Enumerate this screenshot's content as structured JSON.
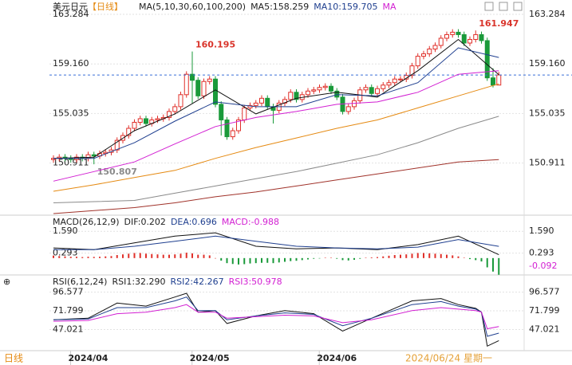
{
  "chart_data": [
    {
      "type": "candlestick",
      "title": "美元日元",
      "subtitle": "【日线】",
      "legend": [
        {
          "text": "MA(5,10,30,60,100,200)",
          "color": "#222222"
        },
        {
          "text": "MA5:158.259",
          "color": "#222222"
        },
        {
          "text": "MA10:159.705",
          "color": "#1f3f8f"
        },
        {
          "text": "MA",
          "color": "#d21fd2"
        }
      ],
      "up_color": "#e0302a",
      "down_color": "#1a9a3a",
      "candles": {
        "open": [
          151.2,
          151.3,
          151.4,
          151.3,
          151.2,
          151.4,
          151.3,
          151.6,
          151.5,
          151.7,
          151.8,
          152.0,
          152.8,
          153.2,
          153.8,
          154.3,
          154.6,
          154.2,
          154.5,
          154.6,
          154.7,
          155.2,
          155.6,
          156.6,
          158.3,
          157.8,
          156.5,
          157.7,
          157.9,
          155.8,
          154.5,
          153.1,
          153.6,
          154.5,
          155.5,
          155.7,
          155.9,
          156.3,
          155.6,
          155.3,
          155.9,
          156.2,
          156.8,
          156.2,
          156.6,
          156.9,
          157.0,
          157.2,
          157.3,
          156.9,
          156.4,
          155.2,
          155.6,
          156.1,
          157.0,
          157.2,
          156.7,
          157.1,
          157.4,
          157.6,
          157.9,
          157.9,
          158.2,
          159.0,
          159.8,
          160.0,
          160.4,
          160.7,
          161.3,
          161.6,
          161.8,
          161.6,
          160.9,
          161.2,
          161.6,
          161.1,
          158.0,
          157.4
        ],
        "high": [
          151.55,
          151.65,
          151.65,
          151.55,
          151.65,
          151.65,
          151.85,
          151.85,
          151.95,
          152.05,
          152.25,
          153.05,
          153.45,
          154.05,
          154.55,
          154.85,
          154.85,
          154.75,
          154.85,
          154.95,
          155.45,
          155.85,
          156.85,
          158.55,
          160.195,
          158.05,
          157.95,
          158.15,
          158.15,
          156.05,
          154.75,
          153.85,
          154.75,
          155.75,
          155.95,
          156.15,
          156.55,
          156.55,
          155.85,
          156.15,
          156.45,
          157.05,
          157.05,
          156.85,
          157.15,
          157.25,
          157.45,
          157.55,
          157.55,
          157.15,
          156.65,
          155.85,
          156.35,
          157.25,
          157.45,
          157.45,
          157.35,
          157.65,
          157.85,
          158.15,
          158.15,
          158.45,
          159.25,
          160.05,
          160.25,
          160.65,
          160.95,
          161.55,
          161.85,
          162.05,
          162.05,
          161.85,
          161.45,
          161.947,
          161.85,
          161.35,
          158.8,
          158.5
        ],
        "low": [
          150.95,
          151.05,
          151.05,
          150.95,
          150.95,
          151.05,
          151.05,
          150.807,
          151.25,
          151.45,
          151.55,
          151.75,
          152.55,
          152.95,
          153.55,
          154.05,
          153.95,
          153.95,
          154.25,
          154.35,
          154.45,
          154.95,
          155.35,
          156.35,
          155.9,
          156.25,
          156.25,
          157.45,
          155.55,
          153.2,
          152.85,
          152.85,
          153.35,
          154.25,
          155.25,
          155.45,
          155.65,
          155.35,
          154.2,
          155.05,
          155.65,
          155.95,
          155.95,
          155.95,
          156.35,
          156.65,
          156.75,
          156.95,
          156.65,
          156.15,
          154.95,
          154.95,
          155.35,
          155.85,
          156.75,
          156.45,
          156.45,
          156.85,
          157.15,
          157.35,
          157.65,
          157.65,
          157.95,
          158.75,
          159.55,
          159.75,
          160.15,
          160.45,
          161.05,
          161.35,
          161.35,
          160.65,
          160.65,
          160.95,
          160.85,
          157.75,
          157.2,
          157.9
        ],
        "close": [
          151.3,
          151.4,
          151.3,
          151.2,
          151.4,
          151.3,
          151.6,
          151.5,
          151.7,
          151.8,
          152.0,
          152.8,
          153.2,
          153.8,
          154.3,
          154.6,
          154.2,
          154.5,
          154.6,
          154.7,
          155.2,
          155.6,
          156.6,
          158.3,
          157.8,
          156.5,
          157.7,
          157.9,
          155.8,
          154.5,
          153.1,
          153.6,
          154.5,
          155.5,
          155.7,
          155.9,
          156.3,
          155.6,
          155.3,
          155.9,
          156.2,
          156.8,
          156.2,
          156.6,
          156.9,
          157.0,
          157.2,
          157.3,
          156.9,
          156.4,
          155.2,
          155.6,
          156.1,
          157.0,
          157.2,
          156.7,
          157.1,
          157.4,
          157.6,
          157.9,
          157.9,
          158.2,
          159.0,
          159.8,
          160.0,
          160.4,
          160.7,
          161.3,
          161.6,
          161.8,
          161.6,
          160.9,
          161.2,
          161.6,
          161.1,
          158.0,
          157.4,
          158.24
        ]
      },
      "series": [
        {
          "name": "MA5",
          "color": "#111111",
          "x": [
            0,
            7,
            14,
            21,
            28,
            35,
            42,
            49,
            56,
            63,
            70,
            77
          ],
          "values": [
            151.3,
            151.4,
            153.6,
            155.0,
            157.0,
            155.0,
            156.3,
            156.8,
            156.4,
            158.6,
            161.2,
            158.26
          ]
        },
        {
          "name": "MA10",
          "color": "#1f3f8f",
          "x": [
            0,
            7,
            14,
            21,
            28,
            35,
            42,
            49,
            56,
            63,
            70,
            77
          ],
          "values": [
            151.3,
            151.3,
            152.6,
            154.4,
            156.0,
            155.6,
            155.6,
            156.6,
            156.5,
            157.6,
            160.5,
            159.7
          ]
        },
        {
          "name": "MA30",
          "color": "#d21fd2",
          "x": [
            0,
            7,
            14,
            21,
            28,
            35,
            42,
            49,
            56,
            63,
            70,
            77
          ],
          "values": [
            149.4,
            150.2,
            151.0,
            152.5,
            153.95,
            154.7,
            155.2,
            155.8,
            156.0,
            156.8,
            158.3,
            158.6
          ]
        },
        {
          "name": "MA60",
          "color": "#e58a12",
          "x": [
            0,
            7,
            14,
            21,
            28,
            35,
            42,
            49,
            56,
            63,
            70,
            77
          ],
          "values": [
            148.56,
            149.1,
            149.7,
            150.3,
            151.3,
            152.2,
            153.0,
            153.8,
            154.5,
            155.5,
            156.5,
            157.5
          ]
        },
        {
          "name": "MA100",
          "color": "#8a8a8a",
          "x": [
            0,
            7,
            14,
            21,
            28,
            35,
            42,
            49,
            56,
            63,
            70,
            77
          ],
          "values": [
            147.6,
            147.7,
            147.8,
            148.4,
            149.0,
            149.6,
            150.2,
            150.9,
            151.6,
            152.6,
            153.8,
            154.8
          ]
        },
        {
          "name": "MA200",
          "color": "#a0322a",
          "x": [
            0,
            7,
            14,
            21,
            28,
            35,
            42,
            49,
            56,
            63,
            70,
            77
          ],
          "values": [
            146.7,
            146.95,
            147.2,
            147.6,
            148.1,
            148.5,
            149.0,
            149.5,
            150.0,
            150.5,
            151.0,
            151.2
          ]
        }
      ],
      "annotations": [
        160.195,
        161.947,
        150.807
      ],
      "annotation_colors": [
        "#d9342b",
        "#d9342b",
        "#8a8a8a"
      ],
      "last_price_color": "#3a6fd8",
      "ylim": [
        146.57,
        164.15
      ],
      "yticks": [
        163.284,
        {
          "value": 159.16,
          "label": "159.160"
        },
        155.035,
        150.911
      ]
    },
    {
      "type": "macd",
      "legend": [
        {
          "text": "MACD(26,12,9)",
          "color": "#222222"
        },
        {
          "text": "DIF:0.202",
          "color": "#222222"
        },
        {
          "text": "DEA:0.696",
          "color": "#1f3f8f"
        },
        {
          "text": "MACD:-0.988",
          "color": "#d21fd2"
        }
      ],
      "up_color": "#e0302a",
      "down_color": "#1a9a3a",
      "histogram": [
        0.15,
        0.12,
        0.1,
        0.08,
        0.08,
        0.06,
        0.08,
        0.07,
        0.08,
        0.1,
        0.12,
        0.18,
        0.22,
        0.26,
        0.3,
        0.3,
        0.26,
        0.24,
        0.22,
        0.2,
        0.2,
        0.22,
        0.26,
        0.32,
        0.28,
        0.2,
        0.2,
        0.16,
        0.0,
        -0.15,
        -0.3,
        -0.35,
        -0.38,
        -0.36,
        -0.32,
        -0.3,
        -0.28,
        -0.28,
        -0.3,
        -0.26,
        -0.22,
        -0.18,
        -0.16,
        -0.12,
        -0.08,
        -0.04,
        -0.02,
        0.02,
        0.02,
        -0.04,
        -0.12,
        -0.14,
        -0.1,
        -0.04,
        0.02,
        0.04,
        0.06,
        0.1,
        0.14,
        0.18,
        0.2,
        0.22,
        0.26,
        0.3,
        0.3,
        0.28,
        0.26,
        0.24,
        0.2,
        0.16,
        0.1,
        0.02,
        -0.06,
        -0.12,
        -0.2,
        -0.55,
        -0.8,
        -0.988
      ],
      "series": [
        {
          "name": "DIF",
          "color": "#111111",
          "x": [
            0,
            7,
            14,
            21,
            28,
            35,
            42,
            49,
            56,
            63,
            70,
            77
          ],
          "values": [
            0.6,
            0.5,
            0.9,
            1.3,
            1.5,
            0.7,
            0.55,
            0.6,
            0.5,
            0.8,
            1.3,
            0.202
          ]
        },
        {
          "name": "DEA",
          "color": "#1f3f8f",
          "x": [
            0,
            7,
            14,
            21,
            28,
            35,
            42,
            49,
            56,
            63,
            70,
            77
          ],
          "values": [
            0.5,
            0.5,
            0.7,
            1.0,
            1.3,
            1.0,
            0.7,
            0.6,
            0.55,
            0.65,
            1.1,
            0.696
          ]
        }
      ],
      "marker": {
        "value": -0.092,
        "label": "-0.092",
        "color": "#d21fd2"
      },
      "ylim": [
        -1.0,
        1.93
      ],
      "yticks": [
        {
          "value": 1.59,
          "label": "1.590"
        },
        0.293
      ]
    },
    {
      "type": "rsi",
      "legend": [
        {
          "text": "RSI(6,12,24)",
          "color": "#222222"
        },
        {
          "text": "RSI1:32.290",
          "color": "#222222"
        },
        {
          "text": "RSI2:42.267",
          "color": "#1f3f8f"
        },
        {
          "text": "RSI3:50.978",
          "color": "#d21fd2"
        }
      ],
      "series": [
        {
          "name": "RSI1",
          "color": "#111111",
          "x": [
            0,
            6,
            11,
            16,
            21,
            23,
            25,
            28,
            30,
            35,
            40,
            45,
            50,
            55,
            62,
            67,
            70,
            73,
            74,
            75,
            77
          ],
          "values": [
            60,
            62,
            82,
            78,
            90,
            95,
            70,
            72,
            55,
            65,
            72,
            68,
            45,
            62,
            85,
            88,
            80,
            75,
            70,
            25,
            32.29
          ]
        },
        {
          "name": "RSI2",
          "color": "#1f3f8f",
          "x": [
            0,
            6,
            11,
            16,
            21,
            23,
            25,
            28,
            30,
            35,
            40,
            45,
            50,
            55,
            62,
            67,
            70,
            73,
            74,
            75,
            77
          ],
          "values": [
            60,
            61,
            76,
            76,
            85,
            90,
            72,
            72,
            60,
            65,
            69,
            67,
            52,
            62,
            80,
            84,
            78,
            74,
            70,
            38,
            42.267
          ]
        },
        {
          "name": "RSI3",
          "color": "#d21fd2",
          "x": [
            0,
            6,
            11,
            16,
            21,
            23,
            25,
            28,
            30,
            35,
            40,
            45,
            50,
            55,
            62,
            67,
            70,
            73,
            74,
            75,
            77
          ],
          "values": [
            58,
            59,
            68,
            70,
            76,
            80,
            70,
            70,
            62,
            64,
            66,
            65,
            56,
            60,
            72,
            76,
            74,
            72,
            70,
            48,
            50.978
          ]
        }
      ],
      "ylim": [
        19,
        114
      ],
      "yticks": [
        96.577,
        71.799,
        47.021
      ],
      "xticks": [
        {
          "value": 6,
          "label": "2024/04"
        },
        {
          "value": 27,
          "label": "2024/05"
        },
        {
          "value": 49,
          "label": "2024/06"
        }
      ]
    }
  ],
  "footer": {
    "timeframe": "日线",
    "cursor_label": "2024/06/24 星期一"
  }
}
